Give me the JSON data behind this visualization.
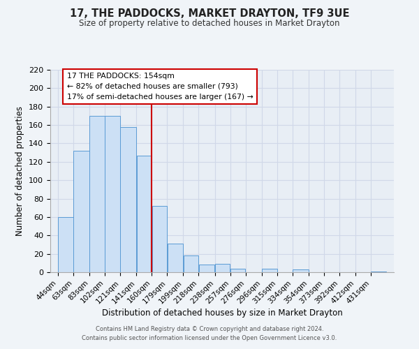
{
  "title": "17, THE PADDOCKS, MARKET DRAYTON, TF9 3UE",
  "subtitle": "Size of property relative to detached houses in Market Drayton",
  "xlabel": "Distribution of detached houses by size in Market Drayton",
  "ylabel": "Number of detached properties",
  "footer_line1": "Contains HM Land Registry data © Crown copyright and database right 2024.",
  "footer_line2": "Contains public sector information licensed under the Open Government Licence v3.0.",
  "bins": [
    "44sqm",
    "63sqm",
    "83sqm",
    "102sqm",
    "121sqm",
    "141sqm",
    "160sqm",
    "179sqm",
    "199sqm",
    "218sqm",
    "238sqm",
    "257sqm",
    "276sqm",
    "296sqm",
    "315sqm",
    "334sqm",
    "354sqm",
    "373sqm",
    "392sqm",
    "412sqm",
    "431sqm"
  ],
  "values": [
    60,
    132,
    170,
    170,
    158,
    127,
    72,
    31,
    18,
    8,
    9,
    4,
    0,
    4,
    0,
    3,
    0,
    0,
    0,
    0,
    1
  ],
  "bar_facecolor": "#cce0f5",
  "bar_edgecolor": "#5b9bd5",
  "grid_color": "#d0d8e8",
  "bg_color": "#e8eef5",
  "fig_bg_color": "#f0f4f8",
  "reference_line_color": "#cc0000",
  "annotation_title": "17 THE PADDOCKS: 154sqm",
  "annotation_line1": "← 82% of detached houses are smaller (793)",
  "annotation_line2": "17% of semi-detached houses are larger (167) →",
  "annotation_box_color": "#cc0000",
  "ylim": [
    0,
    220
  ],
  "yticks": [
    0,
    20,
    40,
    60,
    80,
    100,
    120,
    140,
    160,
    180,
    200,
    220
  ],
  "bin_edges": [
    44,
    63,
    83,
    102,
    121,
    141,
    160,
    179,
    199,
    218,
    238,
    257,
    276,
    296,
    315,
    334,
    354,
    373,
    392,
    412,
    431,
    450
  ],
  "reference_line_x": 160
}
